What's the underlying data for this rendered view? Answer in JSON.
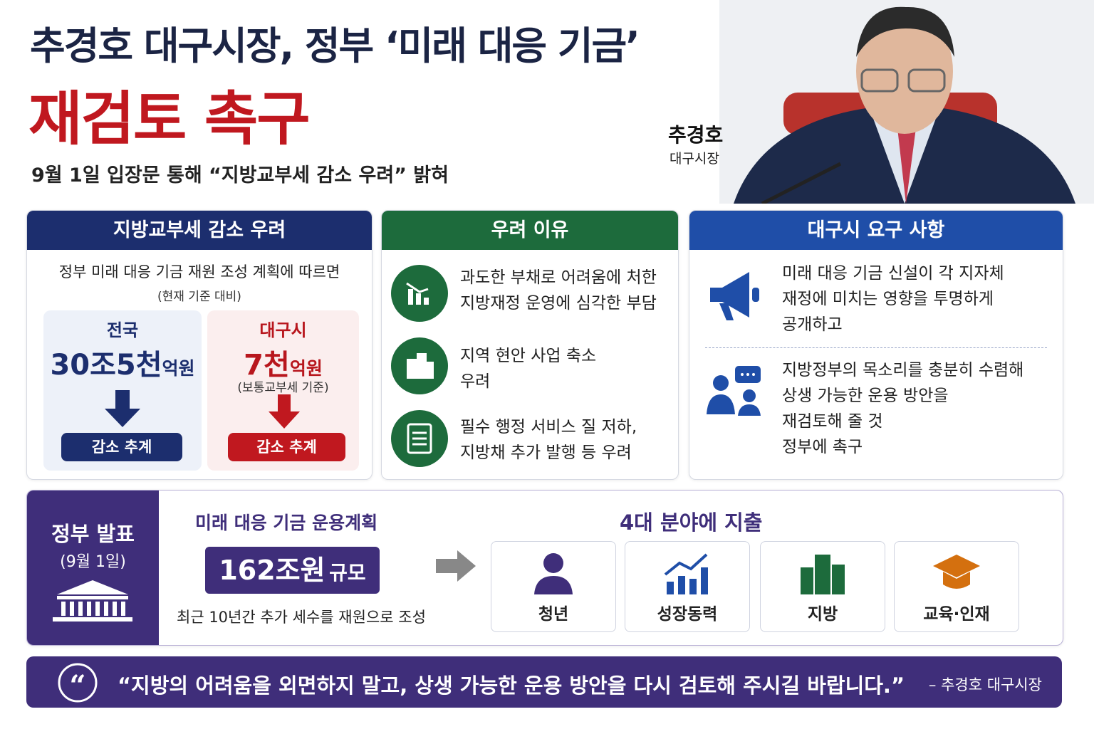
{
  "header": {
    "title_line1": "추경호 대구시장, 정부 ‘미래 대응 기금’",
    "title_line2": "재검토 촉구",
    "subtitle": "9월 1일 입장문 통해 “지방교부세 감소 우려” 밝혀"
  },
  "photo": {
    "name": "추경호",
    "role": "대구시장"
  },
  "panels": [
    {
      "title": "지방교부세 감소 우려",
      "intro": "정부 미래 대응 기금 재원 조성 계획에 따르면",
      "note": "(현재 기준 대비)",
      "boxes": [
        {
          "region": "전국",
          "amount": "30조5천",
          "unit": "억원",
          "badge": "감소 추계"
        },
        {
          "region": "대구시",
          "amount": "7천",
          "unit": "억원",
          "detail": "(보통교부세 기준)",
          "badge": "감소 추계"
        }
      ]
    },
    {
      "title": "우려 이유",
      "items": [
        [
          "과도한 부채로 어려움에 처한",
          "지방재정 운영에 심각한 부담"
        ],
        [
          "지역 현안 사업 축소",
          "우려"
        ],
        [
          "필수 행정 서비스 질 저하,",
          "지방채 추가 발행 등 우려"
        ]
      ]
    },
    {
      "title": "대구시 요구 사항",
      "items": [
        [
          "미래 대응 기금 신설이 각 지자체",
          "재정에 미치는 영향을 투명하게",
          "공개하고"
        ],
        [
          "지방정부의 목소리를 충분히 수렴해",
          "상생 가능한 운용 방안을",
          "재검토해 줄 것",
          "정부에 촉구"
        ]
      ]
    }
  ],
  "announcement": {
    "label": "정부 발표",
    "date": "(9월 1일)",
    "plan_title": "미래 대응 기금 운용계획",
    "amount": "162조원",
    "amount_suffix": "규모",
    "source": "최근 10년간 추가 세수를 재원으로 조성",
    "fields_title": "4대 분야에 지출",
    "fields": [
      "청년",
      "성장동력",
      "지방",
      "교육·인재"
    ]
  },
  "quote": {
    "text": "“지방의 어려움을 외면하지 말고, 상생 가능한 운용 방안을 다시 검토해 주시길 바랍니다.”",
    "source": "– 추경호 대구시장"
  }
}
